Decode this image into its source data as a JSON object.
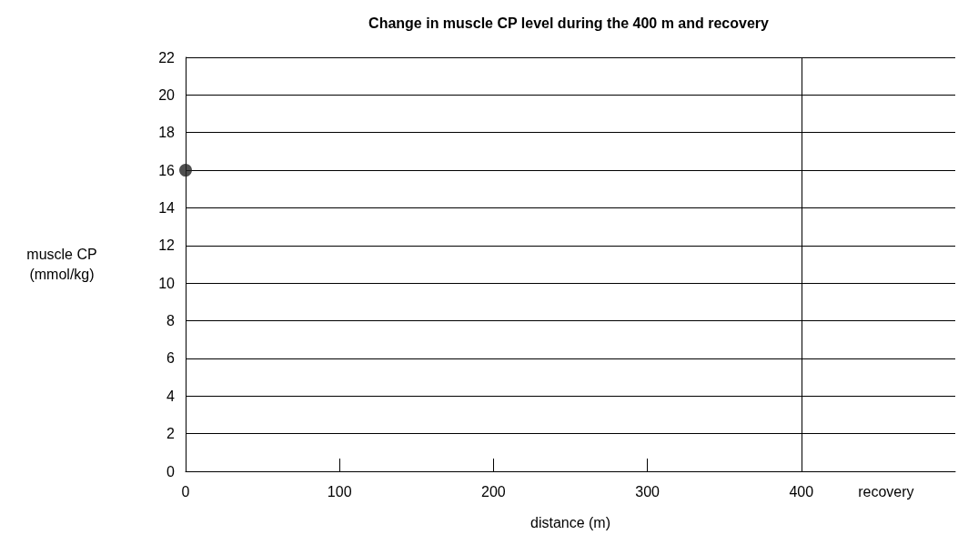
{
  "chart_data": {
    "type": "scatter",
    "title": "Change in muscle CP level during the 400 m and recovery",
    "xlabel": "distance (m)",
    "ylabel": "muscle CP\n(mmol/kg)",
    "x": [
      0
    ],
    "values": [
      16
    ],
    "color": "#222222",
    "marker": "circle",
    "xlim": [
      0,
      500
    ],
    "xticks": [
      0,
      100,
      200,
      300,
      400,
      {
        "value": 455,
        "label": "recovery"
      }
    ],
    "ylim": [
      0,
      22
    ],
    "yticks": [
      0,
      2,
      4,
      6,
      8,
      10,
      12,
      14,
      16,
      18,
      20,
      22
    ],
    "ref_lines": [
      {
        "axis": "x",
        "value": 400,
        "label": null,
        "color": "#000000"
      }
    ],
    "grid": "y"
  }
}
